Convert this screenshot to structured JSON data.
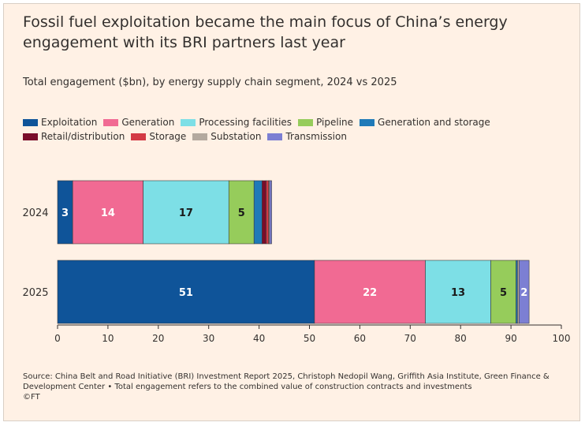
{
  "chart_data": {
    "type": "bar",
    "orientation": "horizontal",
    "stacked": true,
    "title": "Fossil fuel exploitation became the main focus of China’s energy engagement with its BRI partners last year",
    "subtitle": "Total engagement ($bn), by energy supply chain segment, 2024 vs 2025",
    "categories": [
      "2024",
      "2025"
    ],
    "xlim": [
      0,
      100
    ],
    "xticks": [
      0,
      10,
      20,
      30,
      40,
      50,
      60,
      70,
      80,
      90,
      100
    ],
    "legend_placement": "top",
    "series": [
      {
        "name": "Exploitation",
        "color": "#0f5499",
        "label_color": "#ffffff",
        "values": [
          3,
          51
        ]
      },
      {
        "name": "Generation",
        "color": "#f16a93",
        "label_color": "#ffffff",
        "values": [
          14,
          22
        ]
      },
      {
        "name": "Processing facilities",
        "color": "#7ddfe6",
        "label_color": "#1a1a1a",
        "values": [
          17,
          13
        ]
      },
      {
        "name": "Pipeline",
        "color": "#96cc5b",
        "label_color": "#1a1a1a",
        "values": [
          5,
          5
        ]
      },
      {
        "name": "Generation and storage",
        "color": "#1f7ab8",
        "label_color": "#ffffff",
        "values": [
          1.6,
          0.3
        ]
      },
      {
        "name": "Retail/distribution",
        "color": "#7a0d2a",
        "label_color": "#ffffff",
        "values": [
          0.8,
          0
        ]
      },
      {
        "name": "Storage",
        "color": "#d33a45",
        "label_color": "#ffffff",
        "values": [
          0.5,
          0
        ]
      },
      {
        "name": "Substation",
        "color": "#b3a99f",
        "label_color": "#1a1a1a",
        "values": [
          0.2,
          0.3
        ]
      },
      {
        "name": "Transmission",
        "color": "#7c7fd3",
        "label_color": "#ffffff",
        "values": [
          0.4,
          2
        ]
      }
    ],
    "data_labels": [
      [
        "3",
        "14",
        "17",
        "5",
        "",
        "",
        "",
        "",
        ""
      ],
      [
        "51",
        "22",
        "13",
        "5",
        "",
        "",
        "",
        "",
        "2"
      ]
    ]
  },
  "source": "Source: China Belt and Road Initiative (BRI) Investment Report 2025, Christoph Nedopil Wang, Griffith Asia Institute, Green Finance & Development Center • Total engagement refers to the combined value of construction contracts and investments",
  "copyright": "©FT"
}
